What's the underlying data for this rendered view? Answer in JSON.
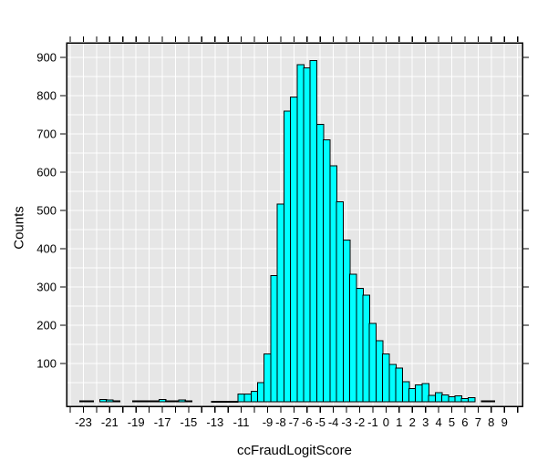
{
  "chart_data": {
    "type": "bar",
    "subtype": "histogram",
    "title": "",
    "xlabel": "ccFraudLogitScore",
    "ylabel": "Counts",
    "bin_width": 0.5,
    "bin_centers": [
      -23,
      -22.5,
      -22,
      -21.5,
      -21,
      -20.5,
      -20,
      -19.5,
      -19,
      -18.5,
      -18,
      -17.5,
      -17,
      -16.5,
      -16,
      -15.5,
      -15,
      -14.5,
      -14,
      -13.5,
      -13,
      -12.5,
      -12,
      -11.5,
      -11,
      -10.5,
      -10,
      -9.5,
      -9,
      -8.5,
      -8,
      -7.5,
      -7,
      -6.5,
      -6,
      -5.5,
      -5,
      -4.5,
      -4,
      -3.5,
      -3,
      -2.5,
      -2,
      -1.5,
      -1,
      -0.5,
      0,
      0.5,
      1,
      1.5,
      2,
      2.5,
      3,
      3.5,
      4,
      4.5,
      5,
      5.5,
      6,
      6.5,
      7,
      7.5,
      8
    ],
    "counts": [
      2,
      2,
      0,
      6,
      5,
      2,
      0,
      0,
      2,
      2,
      2,
      2,
      6,
      2,
      2,
      5,
      2,
      0,
      0,
      0,
      1,
      1,
      1,
      1,
      20,
      20,
      27,
      50,
      125,
      330,
      517,
      760,
      796,
      881,
      873,
      891,
      725,
      685,
      617,
      522,
      423,
      333,
      296,
      278,
      205,
      159,
      125,
      98,
      88,
      52,
      34,
      44,
      48,
      17,
      24,
      18,
      13,
      16,
      8,
      11,
      0,
      2,
      2
    ],
    "x_domain": [
      -24.28,
      10.37
    ],
    "y_domain": [
      -11.9,
      938
    ],
    "x_tick_range": [
      -24,
      10
    ],
    "x_labeled_ticks": [
      -23,
      -21,
      -19,
      -17,
      -15,
      -13,
      -11,
      -9,
      -8,
      -7,
      -6,
      -5,
      -4,
      -3,
      -2,
      -1,
      0,
      1,
      2,
      3,
      4,
      5,
      6,
      7,
      8,
      9
    ],
    "y_labeled_ticks": [
      100,
      200,
      300,
      400,
      500,
      600,
      700,
      800,
      900
    ],
    "y_grid_step": 50,
    "x_grid_step": 1,
    "grid": true,
    "legend_position": "none",
    "colors": {
      "bar_fill": "#00FFFF",
      "bar_stroke": "#000000",
      "plot_bg": "#E6E6E6",
      "grid": "#FFFFFF",
      "frame": "#000000",
      "text": "#000000",
      "outer_bg": "#FFFFFF"
    }
  }
}
